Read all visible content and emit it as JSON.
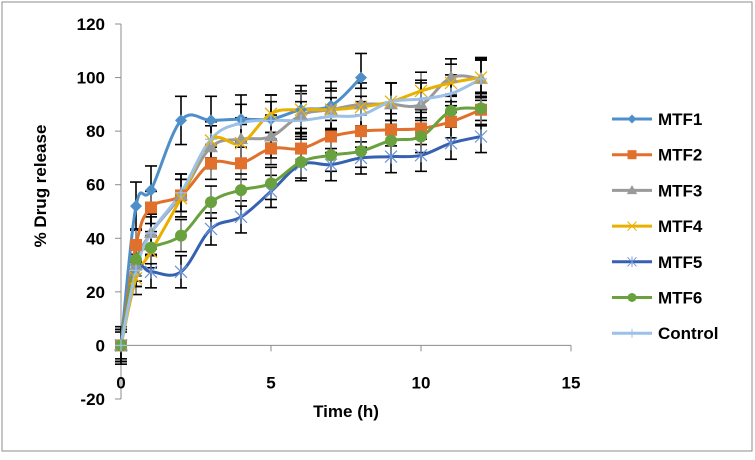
{
  "chart_data": {
    "type": "line",
    "title": "",
    "xlabel": "Time (h)",
    "ylabel": "% Drug release",
    "xlim": [
      0,
      15
    ],
    "ylim": [
      -20,
      120
    ],
    "xticks": [
      0,
      5,
      10,
      15
    ],
    "yticks": [
      -20,
      0,
      20,
      40,
      60,
      80,
      100,
      120
    ],
    "grid": false,
    "legend_position": "right",
    "smoothed_lines": true,
    "error_bars": true,
    "x": [
      0,
      0.5,
      1,
      2,
      3,
      4,
      5,
      6,
      7,
      8,
      9,
      10,
      11,
      12
    ],
    "series": [
      {
        "name": "MTF1",
        "color": "#4f8fc9",
        "marker": "diamond",
        "x": [
          0,
          0.5,
          1,
          2,
          3,
          4,
          5,
          6,
          7,
          8
        ],
        "values": [
          0,
          52,
          58,
          84,
          84,
          84.5,
          84.5,
          88,
          89.5,
          100
        ],
        "errors": [
          7,
          9,
          9,
          9,
          9,
          9,
          9,
          9,
          9,
          9
        ]
      },
      {
        "name": "MTF2",
        "color": "#e0702b",
        "marker": "square",
        "x": [
          0,
          0.5,
          1,
          2,
          3,
          4,
          5,
          6,
          7,
          8,
          9,
          10,
          11,
          12
        ],
        "values": [
          0,
          37.5,
          51.5,
          56,
          68,
          68,
          73.5,
          73.5,
          78,
          80,
          80.5,
          81,
          83.5,
          88
        ],
        "errors": [
          6,
          6,
          6,
          6,
          6,
          6,
          6,
          6,
          6,
          6,
          6,
          6,
          6,
          6
        ]
      },
      {
        "name": "MTF3",
        "color": "#9a9a9a",
        "marker": "triangle",
        "x": [
          0,
          0.5,
          1,
          2,
          3,
          4,
          5,
          6,
          7,
          8,
          9,
          10,
          11,
          12
        ],
        "values": [
          0,
          30,
          42,
          56,
          74,
          77,
          78,
          86,
          88,
          90,
          90,
          90,
          100,
          99.5
        ],
        "errors": [
          6,
          6,
          8,
          8,
          8,
          8,
          8,
          8,
          8,
          8,
          8,
          8,
          7,
          8
        ]
      },
      {
        "name": "MTF4",
        "color": "#e8b000",
        "marker": "x",
        "x": [
          0,
          0.5,
          1,
          2,
          3,
          4,
          5,
          6,
          7,
          8,
          9,
          10,
          11,
          12
        ],
        "values": [
          0,
          25,
          35,
          55,
          76.5,
          75.5,
          86.5,
          88,
          88,
          89,
          91,
          95,
          98,
          100
        ],
        "errors": [
          5,
          6,
          6,
          7,
          7,
          7,
          7,
          7,
          7,
          7,
          7,
          7,
          7,
          7
        ]
      },
      {
        "name": "MTF5",
        "color": "#3561b0",
        "marker": "star",
        "x": [
          0,
          0.5,
          1,
          2,
          3,
          4,
          5,
          6,
          7,
          8,
          9,
          10,
          11,
          12
        ],
        "values": [
          0,
          28,
          27.5,
          27.5,
          43.5,
          48,
          57.5,
          67.5,
          67.5,
          70,
          70.5,
          71,
          75.5,
          78
        ],
        "errors": [
          6,
          6,
          6,
          6,
          6,
          6,
          6,
          6,
          6,
          6,
          6,
          6,
          6,
          6
        ]
      },
      {
        "name": "MTF6",
        "color": "#6aa13f",
        "marker": "circle",
        "x": [
          0,
          0.5,
          1,
          2,
          3,
          4,
          5,
          6,
          7,
          8,
          9,
          10,
          11,
          12
        ],
        "values": [
          0,
          32,
          36.5,
          41,
          53.5,
          58,
          60.5,
          68.5,
          71,
          72.5,
          76.5,
          78,
          87.5,
          88.5
        ],
        "errors": [
          6,
          6,
          6,
          6,
          6,
          6,
          6,
          6,
          6,
          6,
          6,
          6,
          6,
          6
        ]
      },
      {
        "name": "Control",
        "color": "#9cc0e6",
        "marker": "plus",
        "x": [
          0,
          0.5,
          1,
          2,
          3,
          4,
          5,
          6,
          7,
          8,
          9,
          10,
          11,
          12
        ],
        "values": [
          0,
          28,
          42,
          57,
          77,
          83,
          84,
          84,
          85.5,
          86,
          91,
          92,
          94,
          99.5
        ],
        "errors": [
          6,
          6,
          6,
          7,
          7,
          7,
          7,
          7,
          7,
          7,
          7,
          7,
          7,
          7
        ]
      }
    ]
  }
}
